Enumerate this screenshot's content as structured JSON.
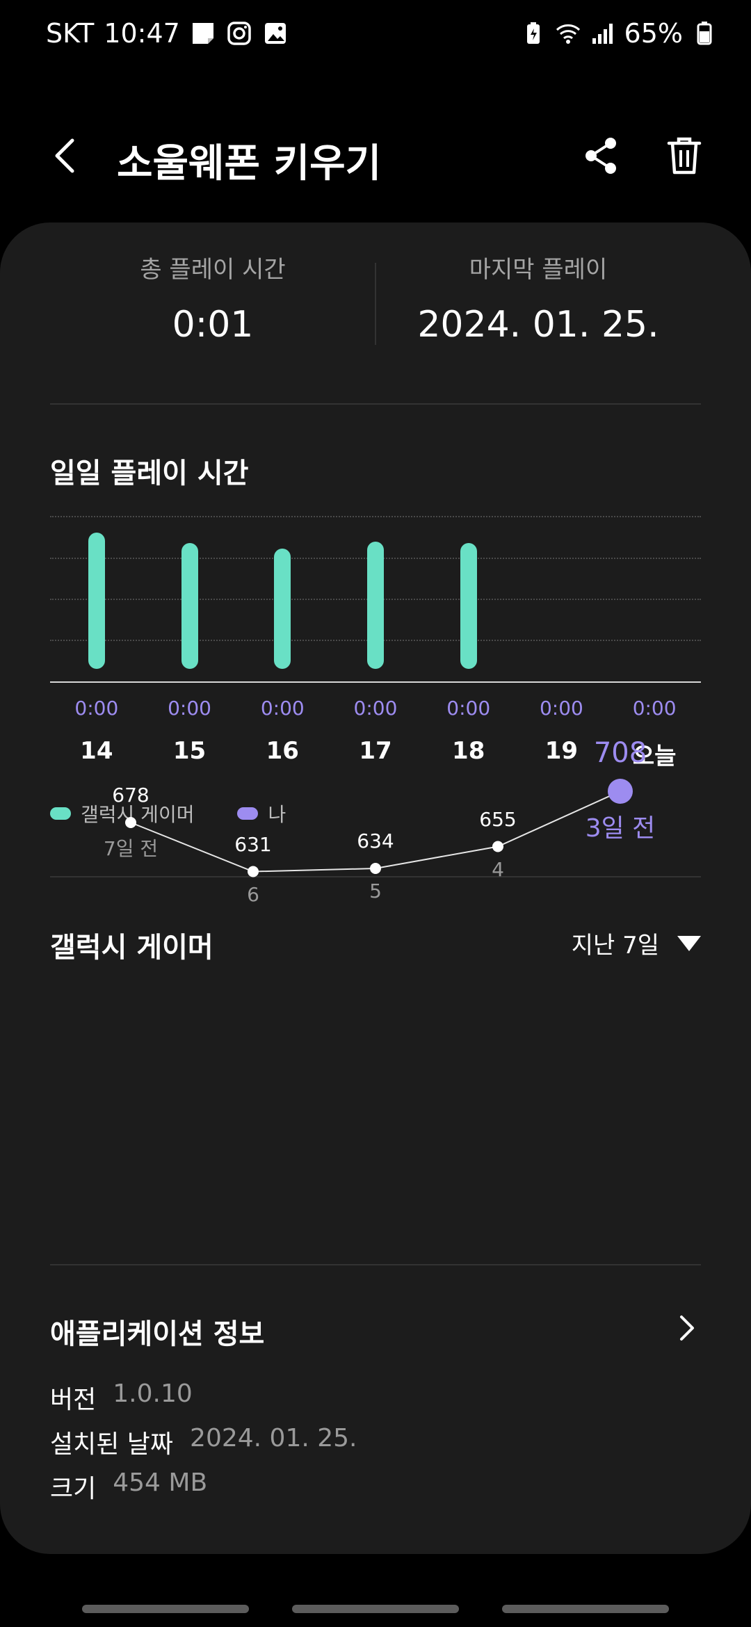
{
  "status_bar": {
    "carrier": "SKT",
    "time": "10:47",
    "battery": "65%"
  },
  "header": {
    "title": "소울웨폰 키우기",
    "icons": [
      "back-icon",
      "share-icon",
      "trash-icon"
    ]
  },
  "summary": {
    "total_label": "총 플레이 시간",
    "total_value": "0:01",
    "last_label": "마지막 플레이",
    "last_value": "2024. 01. 25."
  },
  "daily": {
    "title": "일일 플레이 시간",
    "legend": [
      {
        "label": "갤럭시 게이머",
        "color": "#69e0c5"
      },
      {
        "label": "나",
        "color": "#9d8cf0"
      }
    ]
  },
  "chart_data": [
    {
      "type": "bar",
      "categories": [
        "14",
        "15",
        "16",
        "17",
        "18",
        "19",
        "오늘"
      ],
      "time_labels": [
        "0:00",
        "0:00",
        "0:00",
        "0:00",
        "0:00",
        "0:00",
        "0:00"
      ],
      "series": [
        {
          "name": "갤럭시 게이머",
          "values": [
            0.95,
            0.88,
            0.84,
            0.89,
            0.88,
            0,
            0
          ]
        },
        {
          "name": "나",
          "values": [
            0,
            0,
            0,
            0,
            0,
            0,
            0
          ]
        }
      ],
      "ylim": [
        0,
        1
      ],
      "grid": true
    },
    {
      "type": "line",
      "x": [
        "7일 전",
        "6",
        "5",
        "4",
        "3일 전"
      ],
      "values": [
        678,
        631,
        634,
        655,
        708
      ],
      "highlight_index": 4,
      "highlight_color": "#9d8cf0"
    }
  ],
  "gamer": {
    "title": "갤럭시 게이머",
    "range_label": "지난 7일"
  },
  "app_info": {
    "title": "애플리케이션 정보",
    "rows": [
      {
        "key": "버전",
        "value": "1.0.10"
      },
      {
        "key": "설치된 날짜",
        "value": "2024. 01. 25."
      },
      {
        "key": "크기",
        "value": "454 MB"
      }
    ]
  }
}
